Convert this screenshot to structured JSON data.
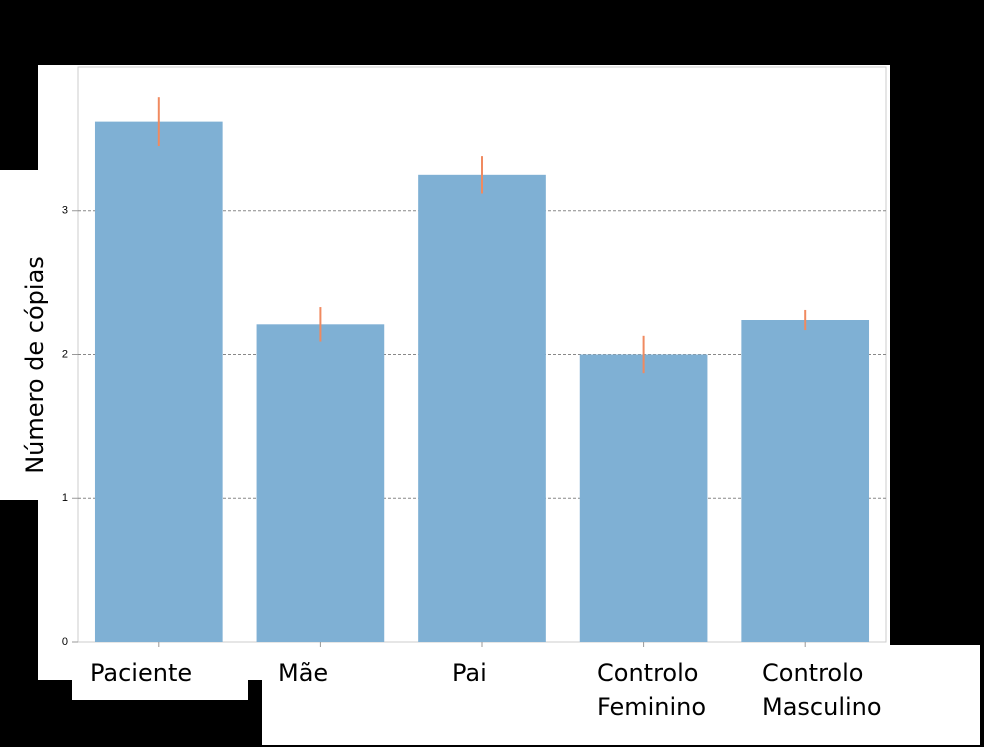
{
  "chart_data": {
    "type": "bar",
    "y_label": "Número de cópias",
    "categories": [
      "Paciente",
      "Mãe",
      "Pai",
      "Controlo Feminino",
      "Controlo Masculino"
    ],
    "values": [
      3.62,
      2.21,
      3.25,
      2.0,
      2.24
    ],
    "errors": [
      0.17,
      0.12,
      0.13,
      0.13,
      0.07
    ],
    "color": "#7fb0d4",
    "error_color": "#f08a60",
    "ylim": [
      0,
      4
    ],
    "yticks": [
      0,
      1,
      2,
      3
    ],
    "grid": true
  }
}
